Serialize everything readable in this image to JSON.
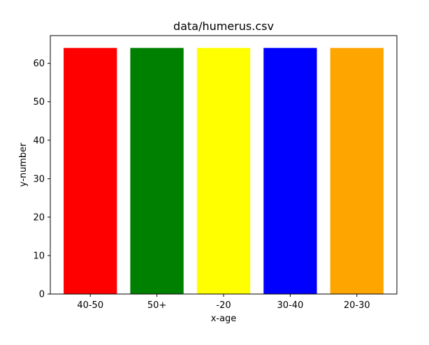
{
  "chart_data": {
    "type": "bar",
    "title": "data/humerus.csv",
    "xlabel": "x-age",
    "ylabel": "y-number",
    "categories": [
      "40-50",
      "50+",
      "-20",
      "30-40",
      "20-30"
    ],
    "values": [
      64,
      64,
      64,
      64,
      64
    ],
    "colors": [
      "#ff0000",
      "#008000",
      "#ffff00",
      "#0000ff",
      "#ffa500"
    ],
    "ylim": [
      0,
      67.2
    ],
    "yticks": [
      0,
      10,
      20,
      30,
      40,
      50,
      60
    ],
    "grid": false,
    "legend": "none"
  }
}
